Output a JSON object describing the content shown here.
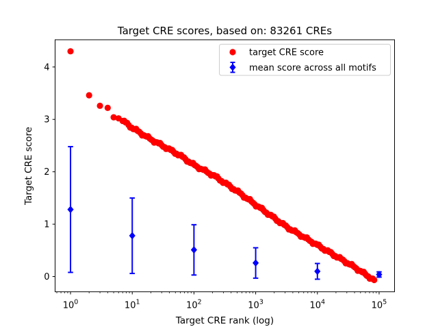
{
  "chart_data": {
    "type": "scatter",
    "title": "Target CRE scores, based on: 83261 CREs",
    "xlabel": "Target CRE rank (log)",
    "ylabel": "Target CRE score",
    "x_scale": "log",
    "xlim_log10": [
      -0.25,
      5.25
    ],
    "ylim": [
      -0.29,
      4.52
    ],
    "x_ticks": [
      1,
      10,
      100,
      1000,
      10000,
      100000
    ],
    "y_ticks": [
      0,
      1,
      2,
      3,
      4
    ],
    "grid": false,
    "total_cres": 83261,
    "legend_position": "upper right",
    "series": [
      {
        "name": "target CRE score",
        "color": "#ff0000",
        "marker": "circle",
        "points": [
          [
            1,
            4.3
          ],
          [
            2,
            3.46
          ],
          [
            3,
            3.26
          ],
          [
            4,
            3.22
          ],
          [
            5,
            3.04
          ],
          [
            6,
            3.02
          ],
          [
            7,
            2.97
          ],
          [
            8,
            2.93
          ],
          [
            9,
            2.88
          ],
          [
            10,
            2.84
          ],
          [
            15,
            2.71
          ],
          [
            20,
            2.62
          ],
          [
            38,
            2.44
          ],
          [
            60,
            2.31
          ],
          [
            100,
            2.13
          ],
          [
            215,
            1.92
          ],
          [
            500,
            1.63
          ],
          [
            1000,
            1.37
          ],
          [
            3162,
            0.95
          ],
          [
            10000,
            0.6
          ],
          [
            20000,
            0.39
          ],
          [
            40000,
            0.18
          ],
          [
            83261,
            -0.07
          ]
        ]
      },
      {
        "name": "mean score across all motifs",
        "color": "#0000ff",
        "marker": "diamond",
        "x": [
          1,
          10,
          100,
          1000,
          10000,
          100000
        ],
        "mean": [
          1.28,
          0.78,
          0.51,
          0.26,
          0.1,
          0.04
        ],
        "err": [
          1.2,
          0.72,
          0.48,
          0.29,
          0.15,
          0.05
        ]
      }
    ]
  }
}
